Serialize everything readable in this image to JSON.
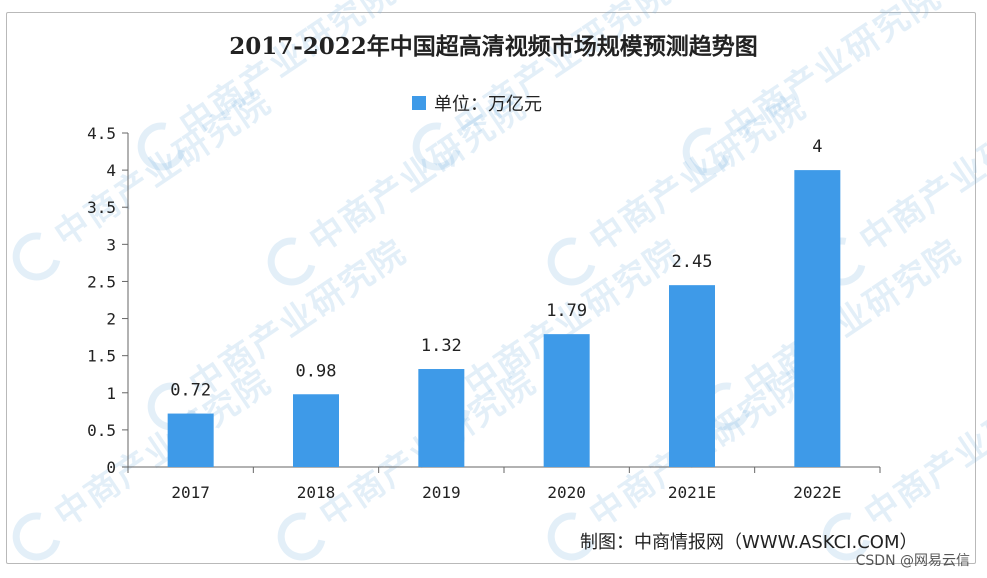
{
  "chart_data": {
    "type": "bar",
    "title": "2017-2022年中国超高清视频市场规模预测趋势图",
    "legend": [
      "单位：万亿元"
    ],
    "categories": [
      "2017",
      "2018",
      "2019",
      "2020",
      "2021E",
      "2022E"
    ],
    "values": [
      0.72,
      0.98,
      1.32,
      1.79,
      2.45,
      4
    ],
    "value_labels": [
      "0.72",
      "0.98",
      "1.32",
      "1.79",
      "2.45",
      "4"
    ],
    "y_ticks": [
      "0",
      "0.5",
      "1",
      "1.5",
      "2",
      "2.5",
      "3",
      "3.5",
      "4",
      "4.5"
    ],
    "ylim": [
      0,
      4.5
    ],
    "bar_color": "#3e9ae8",
    "grid": false,
    "legend_position": "top-center"
  },
  "source": "制图：中商情报网（WWW.ASKCI.COM）",
  "credit": "CSDN @网易云信",
  "watermark": "中商产业研究院"
}
